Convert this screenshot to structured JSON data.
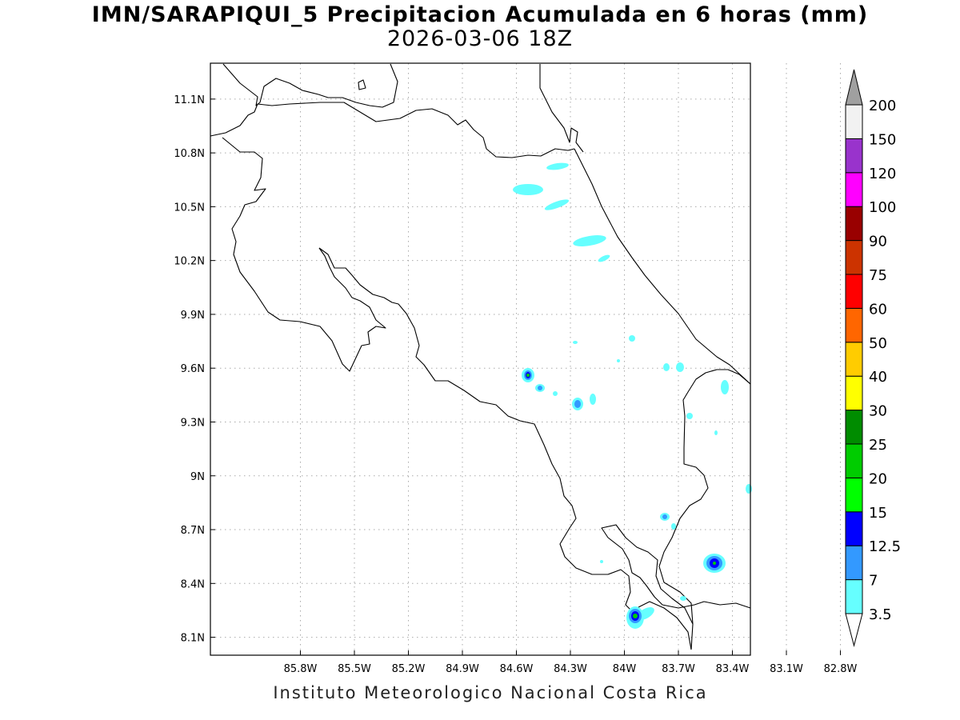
{
  "header": {
    "title": "IMN/SARAPIQUI_5 Precipitacion Acumulada en 6 horas (mm)",
    "subtitle": "2026-03-06 18Z"
  },
  "footer": {
    "credit": "Instituto Meteorologico Nacional Costa Rica"
  },
  "map": {
    "lon_range": [
      -86.3,
      -83.3
    ],
    "lat_range": [
      8.0,
      11.3
    ],
    "lon_ticks": [
      {
        "value": -85.8,
        "label": "85.8W"
      },
      {
        "value": -85.5,
        "label": "85.5W"
      },
      {
        "value": -85.2,
        "label": "85.2W"
      },
      {
        "value": -84.9,
        "label": "84.9W"
      },
      {
        "value": -84.6,
        "label": "84.6W"
      },
      {
        "value": -84.3,
        "label": "84.3W"
      },
      {
        "value": -84.0,
        "label": "84W"
      },
      {
        "value": -83.7,
        "label": "83.7W"
      },
      {
        "value": -83.4,
        "label": "83.4W"
      },
      {
        "value": -83.1,
        "label": "83.1W"
      },
      {
        "value": -82.8,
        "label": "82.8W"
      }
    ],
    "lat_ticks": [
      {
        "value": 11.1,
        "label": "11.1N"
      },
      {
        "value": 10.8,
        "label": "10.8N"
      },
      {
        "value": 10.5,
        "label": "10.5N"
      },
      {
        "value": 10.2,
        "label": "10.2N"
      },
      {
        "value": 9.9,
        "label": "9.9N"
      },
      {
        "value": 9.6,
        "label": "9.6N"
      },
      {
        "value": 9.3,
        "label": "9.3N"
      },
      {
        "value": 9.0,
        "label": "9N"
      },
      {
        "value": 8.7,
        "label": "8.7N"
      },
      {
        "value": 8.4,
        "label": "8.4N"
      },
      {
        "value": 8.1,
        "label": "8.1N"
      }
    ],
    "grid": true
  },
  "colorbar": {
    "levels": [
      {
        "label": "3.5",
        "color": "#66ffff"
      },
      {
        "label": "7",
        "color": "#3399ff"
      },
      {
        "label": "12.5",
        "color": "#0000ff"
      },
      {
        "label": "15",
        "color": "#00ff00"
      },
      {
        "label": "20",
        "color": "#00cc00"
      },
      {
        "label": "25",
        "color": "#008c00"
      },
      {
        "label": "30",
        "color": "#ffff00"
      },
      {
        "label": "40",
        "color": "#ffcc00"
      },
      {
        "label": "50",
        "color": "#ff6600"
      },
      {
        "label": "60",
        "color": "#ff0000"
      },
      {
        "label": "75",
        "color": "#cc3300"
      },
      {
        "label": "90",
        "color": "#990000"
      },
      {
        "label": "100",
        "color": "#ff00ff"
      },
      {
        "label": "120",
        "color": "#9933cc"
      },
      {
        "label": "150",
        "color": "#f2f2f2"
      },
      {
        "label": "200",
        "color": "#a0a0a0"
      }
    ]
  }
}
